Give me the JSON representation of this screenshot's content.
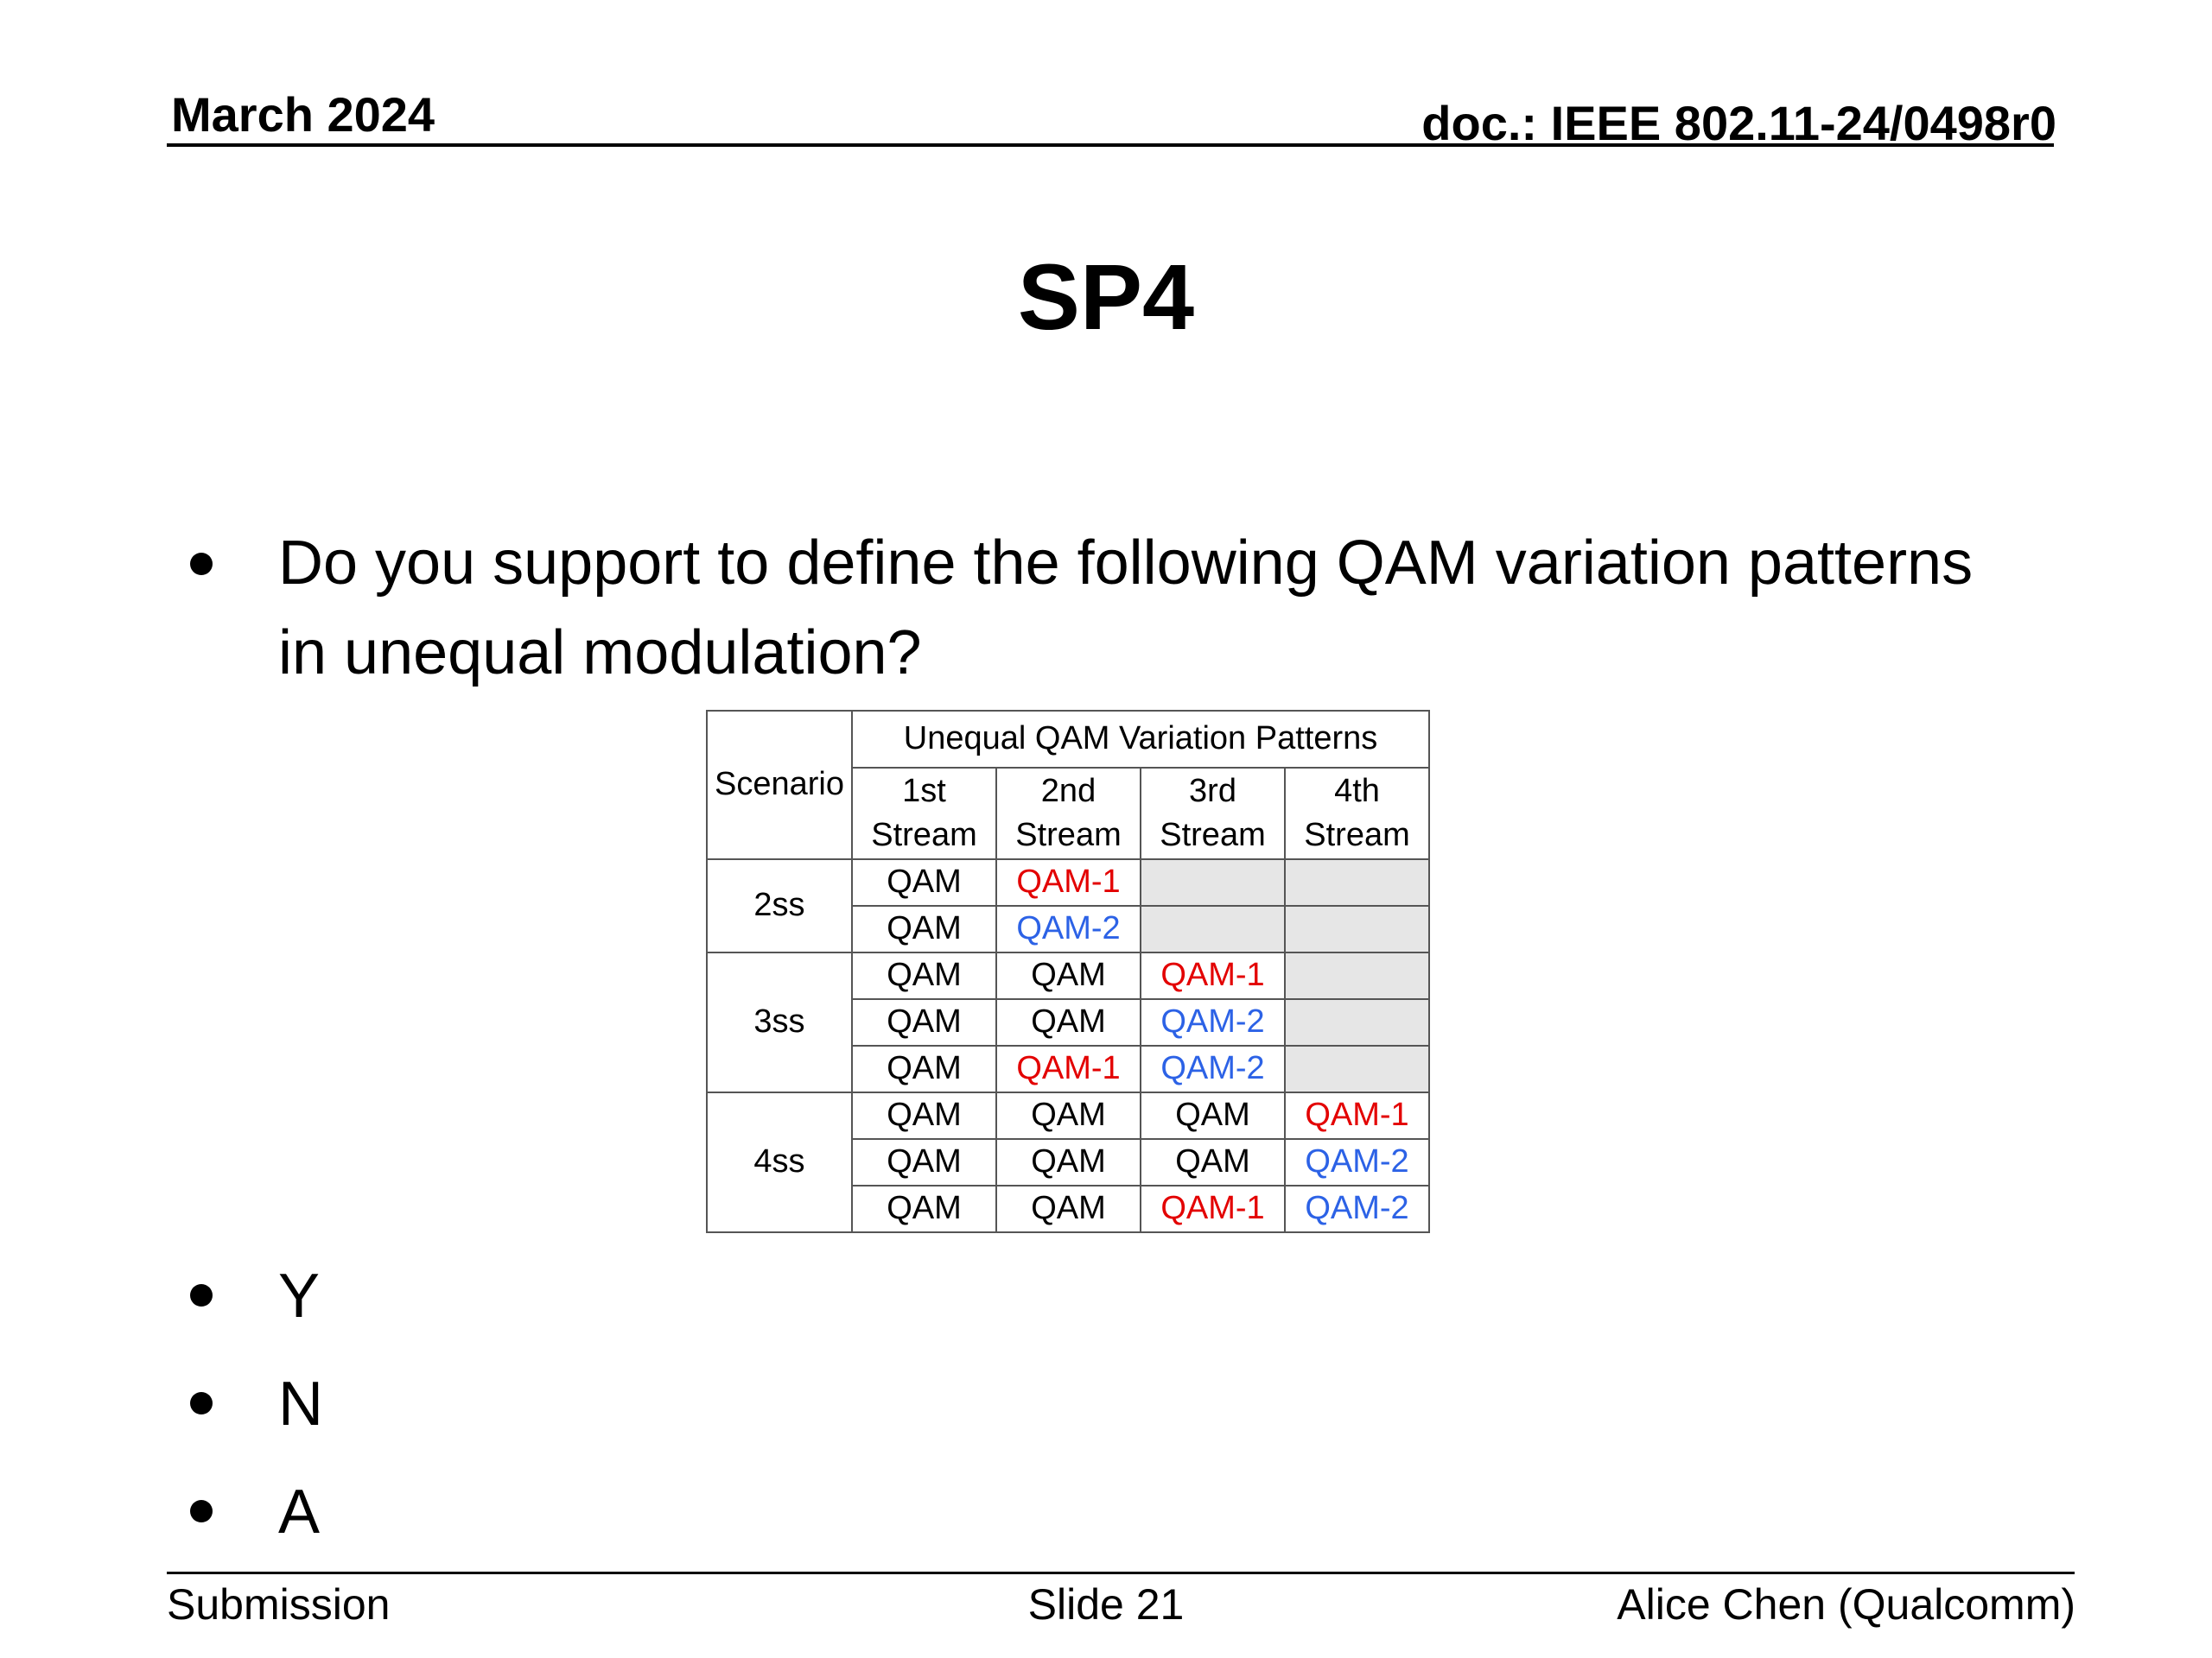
{
  "header": {
    "date": "March 2024",
    "doc_id": "doc.: IEEE 802.11-24/0498r0"
  },
  "title": "SP4",
  "question": "Do you support to define the following QAM variation patterns in unequal modulation?",
  "table": {
    "scenario_header": "Scenario",
    "group_header": "Unequal QAM Variation Patterns",
    "stream_headers": [
      "1st Stream",
      "2nd Stream",
      "3rd Stream",
      "4th Stream"
    ],
    "groups": [
      {
        "label": "2ss",
        "rows": [
          [
            "QAM",
            "QAM-1",
            "",
            ""
          ],
          [
            "QAM",
            "QAM-2",
            "",
            ""
          ]
        ]
      },
      {
        "label": "3ss",
        "rows": [
          [
            "QAM",
            "QAM",
            "QAM-1",
            ""
          ],
          [
            "QAM",
            "QAM",
            "QAM-2",
            ""
          ],
          [
            "QAM",
            "QAM-1",
            "QAM-2",
            ""
          ]
        ]
      },
      {
        "label": "4ss",
        "rows": [
          [
            "QAM",
            "QAM",
            "QAM",
            "QAM-1"
          ],
          [
            "QAM",
            "QAM",
            "QAM",
            "QAM-2"
          ],
          [
            "QAM",
            "QAM",
            "QAM-1",
            "QAM-2"
          ]
        ]
      }
    ],
    "colors": {
      "QAM-1": "#e30000",
      "QAM-2": "#2c62e6",
      "empty": "#e6e6e6"
    }
  },
  "options": [
    "Y",
    "N",
    "A"
  ],
  "footer": {
    "left": "Submission",
    "center": "Slide 21",
    "right": "Alice Chen (Qualcomm)"
  }
}
